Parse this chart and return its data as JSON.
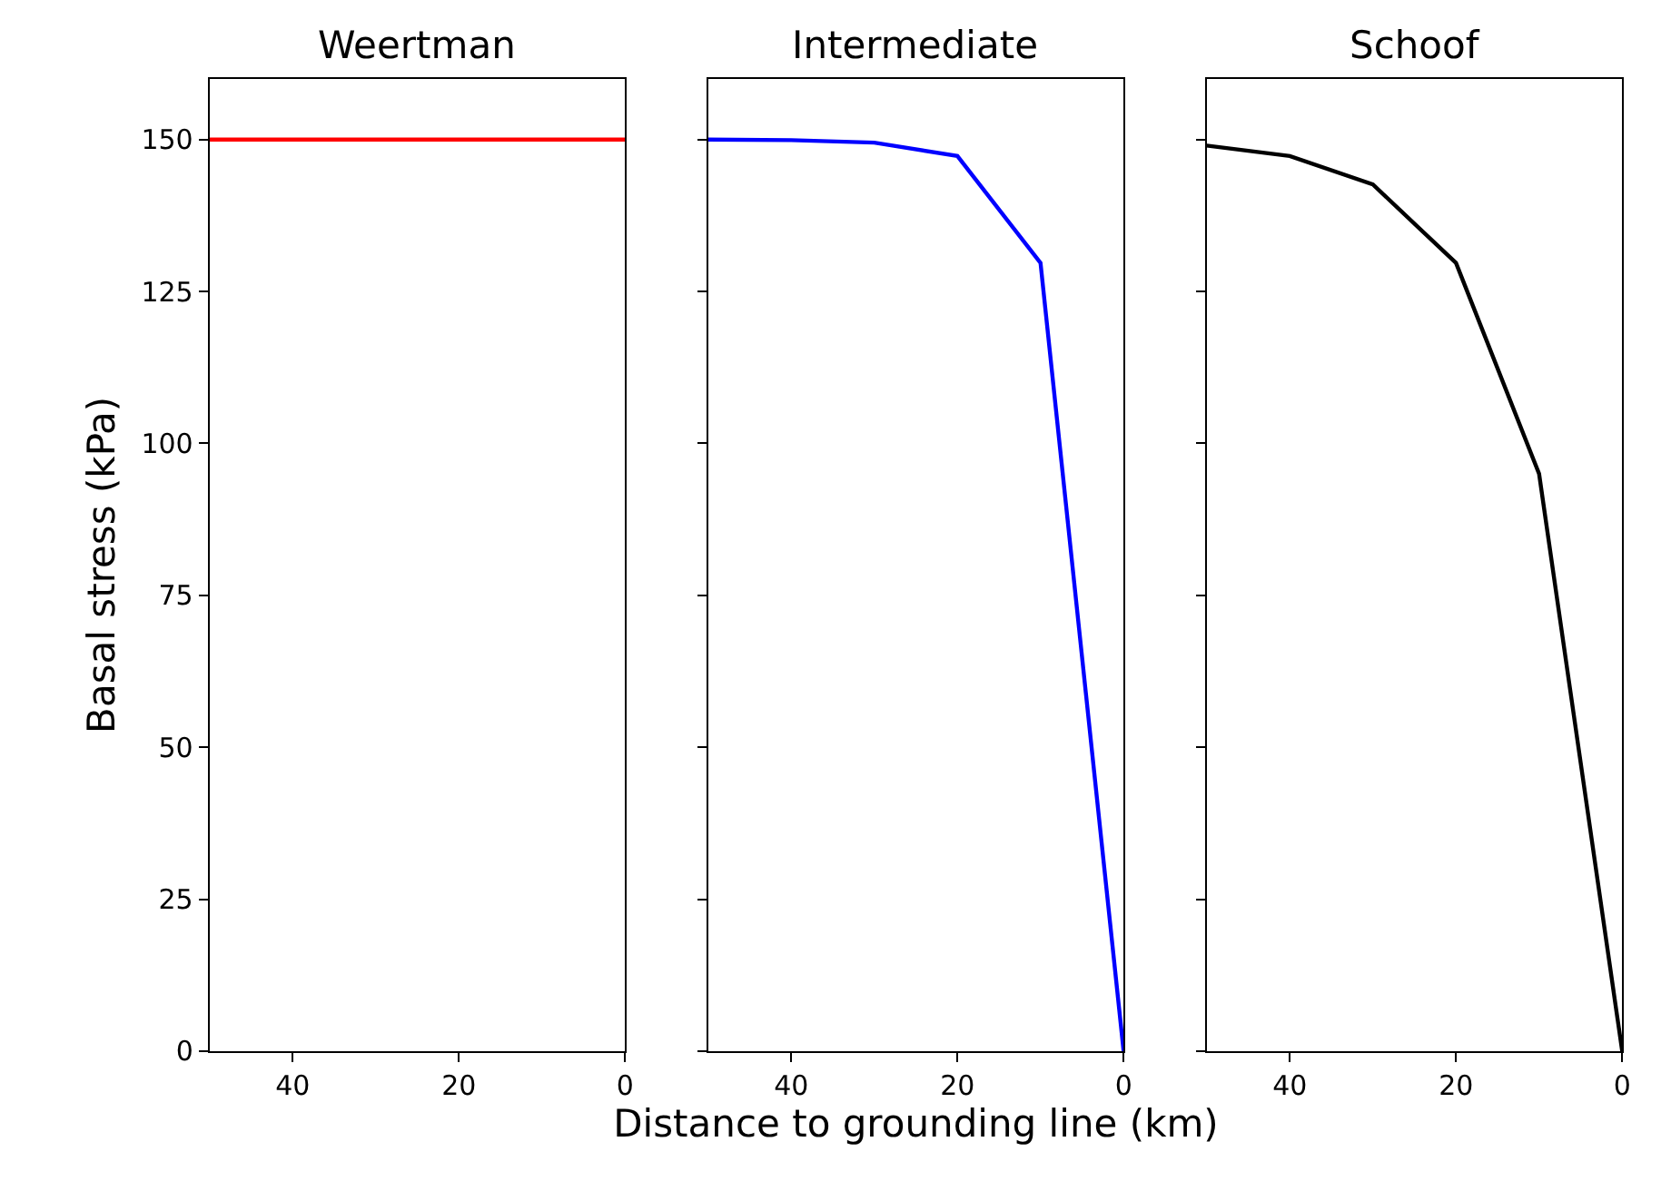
{
  "chart_data": [
    {
      "type": "line",
      "title": "Weertman",
      "ylabel": "Basal stress (kPa)",
      "x": [
        50,
        40,
        30,
        20,
        10,
        0
      ],
      "series": [
        {
          "color": "#ff0000",
          "values": [
            150,
            150,
            150,
            150,
            150,
            150
          ]
        }
      ],
      "xlim": [
        50,
        0
      ],
      "xticks": [
        40,
        20,
        0
      ],
      "ylim": [
        0,
        160
      ],
      "yticks": [
        0,
        25,
        50,
        75,
        100,
        125,
        150
      ]
    },
    {
      "type": "line",
      "title": "Intermediate",
      "xlabel": "Distance to grounding line (km)",
      "x": [
        50,
        40,
        30,
        20,
        10,
        0
      ],
      "series": [
        {
          "color": "#0000ff",
          "values": [
            150,
            149.9,
            149.5,
            147.3,
            129.7,
            0
          ]
        }
      ],
      "xlim": [
        50,
        0
      ],
      "xticks": [
        40,
        20,
        0
      ],
      "ylim": [
        0,
        160
      ],
      "yticks": [
        0,
        25,
        50,
        75,
        100,
        125,
        150
      ],
      "tick_labels": "x"
    },
    {
      "type": "line",
      "title": "Schoof",
      "x": [
        50,
        40,
        30,
        20,
        10,
        0
      ],
      "series": [
        {
          "color": "#000000",
          "values": [
            149,
            147.3,
            142.6,
            129.7,
            95,
            0
          ]
        }
      ],
      "xlim": [
        50,
        0
      ],
      "xticks": [
        40,
        20,
        0
      ],
      "ylim": [
        0,
        160
      ],
      "yticks": [
        0,
        25,
        50,
        75,
        100,
        125,
        150
      ],
      "tick_labels": "x"
    }
  ]
}
